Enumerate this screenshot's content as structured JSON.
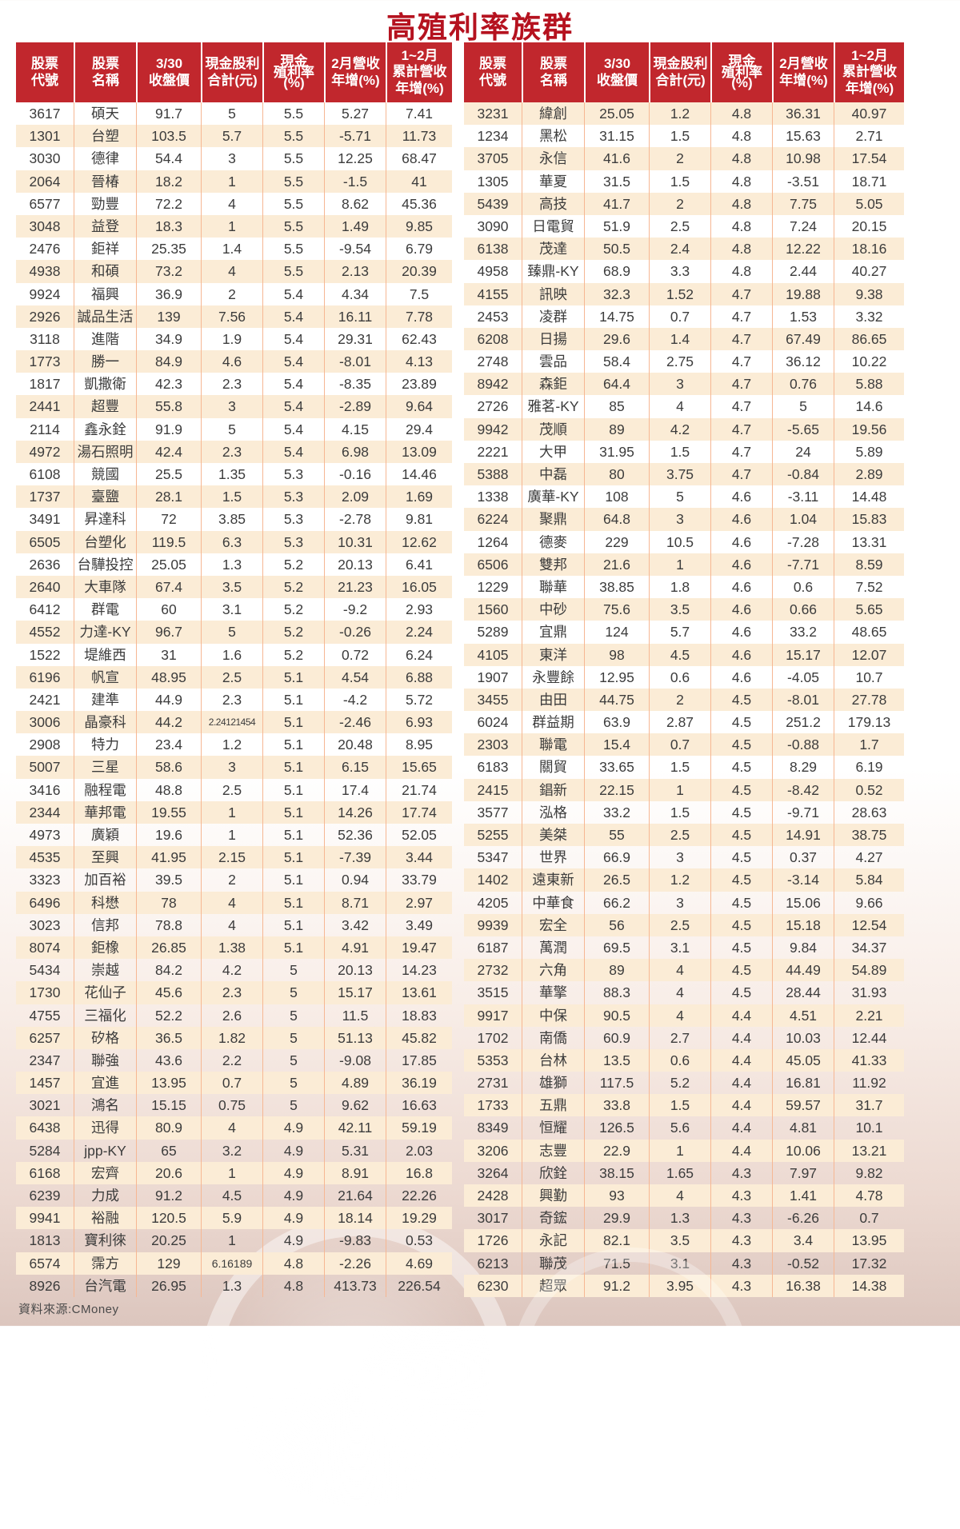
{
  "title": "高殖利率族群",
  "source": "資料來源:CMoney",
  "colors": {
    "header_bg": "#c1272d",
    "title_red": "#b5121f",
    "row_stripe": "#fbecd6",
    "column_divider": "#f6b793",
    "body_text": "#3c3c3c"
  },
  "table": {
    "headers": [
      {
        "label": "股票代號",
        "lines": [
          "股票",
          "代號"
        ]
      },
      {
        "label": "股票名稱",
        "lines": [
          "股票",
          "名稱"
        ]
      },
      {
        "label": "3/30收盤價",
        "lines": [
          "3/30",
          "收盤價"
        ]
      },
      {
        "label": "現金股利合計(元)",
        "lines": [
          "現金股利",
          "合計(元)"
        ]
      },
      {
        "label": "現金殖利率(%)",
        "lines": [
          "現金",
          "殖利率",
          "(%)"
        ]
      },
      {
        "label": "2月營收年增(%)",
        "lines": [
          "2月營收",
          "年增(%)"
        ]
      },
      {
        "label": "1~2月累計營收年增(%)",
        "lines": [
          "1~2月",
          "累計營收",
          "年增(%)"
        ]
      }
    ],
    "column_keys": [
      "code",
      "name",
      "price",
      "dividend",
      "yield",
      "feb-yoy",
      "cum-yoy"
    ]
  },
  "left_rows": [
    [
      "3617",
      "碩天",
      "91.7",
      "5",
      "5.5",
      "5.27",
      "7.41"
    ],
    [
      "1301",
      "台塑",
      "103.5",
      "5.7",
      "5.5",
      "-5.71",
      "11.73"
    ],
    [
      "3030",
      "德律",
      "54.4",
      "3",
      "5.5",
      "12.25",
      "68.47"
    ],
    [
      "2064",
      "晉椿",
      "18.2",
      "1",
      "5.5",
      "-1.5",
      "41"
    ],
    [
      "6577",
      "勁豐",
      "72.2",
      "4",
      "5.5",
      "8.62",
      "45.36"
    ],
    [
      "3048",
      "益登",
      "18.3",
      "1",
      "5.5",
      "1.49",
      "9.85"
    ],
    [
      "2476",
      "鉅祥",
      "25.35",
      "1.4",
      "5.5",
      "-9.54",
      "6.79"
    ],
    [
      "4938",
      "和碩",
      "73.2",
      "4",
      "5.5",
      "2.13",
      "20.39"
    ],
    [
      "9924",
      "福興",
      "36.9",
      "2",
      "5.4",
      "4.34",
      "7.5"
    ],
    [
      "2926",
      "誠品生活",
      "139",
      "7.56",
      "5.4",
      "16.11",
      "7.78"
    ],
    [
      "3118",
      "進階",
      "34.9",
      "1.9",
      "5.4",
      "29.31",
      "62.43"
    ],
    [
      "1773",
      "勝一",
      "84.9",
      "4.6",
      "5.4",
      "-8.01",
      "4.13"
    ],
    [
      "1817",
      "凱撒衛",
      "42.3",
      "2.3",
      "5.4",
      "-8.35",
      "23.89"
    ],
    [
      "2441",
      "超豐",
      "55.8",
      "3",
      "5.4",
      "-2.89",
      "9.64"
    ],
    [
      "2114",
      "鑫永銓",
      "91.9",
      "5",
      "5.4",
      "4.15",
      "29.4"
    ],
    [
      "4972",
      "湯石照明",
      "42.4",
      "2.3",
      "5.4",
      "6.98",
      "13.09"
    ],
    [
      "6108",
      "競國",
      "25.5",
      "1.35",
      "5.3",
      "-0.16",
      "14.46"
    ],
    [
      "1737",
      "臺鹽",
      "28.1",
      "1.5",
      "5.3",
      "2.09",
      "1.69"
    ],
    [
      "3491",
      "昇達科",
      "72",
      "3.85",
      "5.3",
      "-2.78",
      "9.81"
    ],
    [
      "6505",
      "台塑化",
      "119.5",
      "6.3",
      "5.3",
      "10.31",
      "12.62"
    ],
    [
      "2636",
      "台驊投控",
      "25.05",
      "1.3",
      "5.2",
      "20.13",
      "6.41"
    ],
    [
      "2640",
      "大車隊",
      "67.4",
      "3.5",
      "5.2",
      "21.23",
      "16.05"
    ],
    [
      "6412",
      "群電",
      "60",
      "3.1",
      "5.2",
      "-9.2",
      "2.93"
    ],
    [
      "4552",
      "力達-KY",
      "96.7",
      "5",
      "5.2",
      "-0.26",
      "2.24"
    ],
    [
      "1522",
      "堤維西",
      "31",
      "1.6",
      "5.2",
      "0.72",
      "6.24"
    ],
    [
      "6196",
      "帆宣",
      "48.95",
      "2.5",
      "5.1",
      "4.54",
      "6.88"
    ],
    [
      "2421",
      "建準",
      "44.9",
      "2.3",
      "5.1",
      "-4.2",
      "5.72"
    ],
    [
      "3006",
      "晶豪科",
      "44.2",
      "2.24121454",
      "5.1",
      "-2.46",
      "6.93"
    ],
    [
      "2908",
      "特力",
      "23.4",
      "1.2",
      "5.1",
      "20.48",
      "8.95"
    ],
    [
      "5007",
      "三星",
      "58.6",
      "3",
      "5.1",
      "6.15",
      "15.65"
    ],
    [
      "3416",
      "融程電",
      "48.8",
      "2.5",
      "5.1",
      "17.4",
      "21.74"
    ],
    [
      "2344",
      "華邦電",
      "19.55",
      "1",
      "5.1",
      "14.26",
      "17.74"
    ],
    [
      "4973",
      "廣穎",
      "19.6",
      "1",
      "5.1",
      "52.36",
      "52.05"
    ],
    [
      "4535",
      "至興",
      "41.95",
      "2.15",
      "5.1",
      "-7.39",
      "3.44"
    ],
    [
      "3323",
      "加百裕",
      "39.5",
      "2",
      "5.1",
      "0.94",
      "33.79"
    ],
    [
      "6496",
      "科懋",
      "78",
      "4",
      "5.1",
      "8.71",
      "2.97"
    ],
    [
      "3023",
      "信邦",
      "78.8",
      "4",
      "5.1",
      "3.42",
      "3.49"
    ],
    [
      "8074",
      "鉅橡",
      "26.85",
      "1.38",
      "5.1",
      "4.91",
      "19.47"
    ],
    [
      "5434",
      "崇越",
      "84.2",
      "4.2",
      "5",
      "20.13",
      "14.23"
    ],
    [
      "1730",
      "花仙子",
      "45.6",
      "2.3",
      "5",
      "15.17",
      "13.61"
    ],
    [
      "4755",
      "三福化",
      "52.2",
      "2.6",
      "5",
      "11.5",
      "18.83"
    ],
    [
      "6257",
      "矽格",
      "36.5",
      "1.82",
      "5",
      "51.13",
      "45.82"
    ],
    [
      "2347",
      "聯強",
      "43.6",
      "2.2",
      "5",
      "-9.08",
      "17.85"
    ],
    [
      "1457",
      "宜進",
      "13.95",
      "0.7",
      "5",
      "4.89",
      "36.19"
    ],
    [
      "3021",
      "鴻名",
      "15.15",
      "0.75",
      "5",
      "9.62",
      "16.63"
    ],
    [
      "6438",
      "迅得",
      "80.9",
      "4",
      "4.9",
      "42.11",
      "59.19"
    ],
    [
      "5284",
      "jpp-KY",
      "65",
      "3.2",
      "4.9",
      "5.31",
      "2.03"
    ],
    [
      "6168",
      "宏齊",
      "20.6",
      "1",
      "4.9",
      "8.91",
      "16.8"
    ],
    [
      "6239",
      "力成",
      "91.2",
      "4.5",
      "4.9",
      "21.64",
      "22.26"
    ],
    [
      "9941",
      "裕融",
      "120.5",
      "5.9",
      "4.9",
      "18.14",
      "19.29"
    ],
    [
      "1813",
      "寶利徠",
      "20.25",
      "1",
      "4.9",
      "-9.83",
      "0.53"
    ],
    [
      "6574",
      "霈方",
      "129",
      "6.16189",
      "4.8",
      "-2.26",
      "4.69"
    ],
    [
      "8926",
      "台汽電",
      "26.95",
      "1.3",
      "4.8",
      "413.73",
      "226.54"
    ]
  ],
  "right_rows": [
    [
      "3231",
      "緯創",
      "25.05",
      "1.2",
      "4.8",
      "36.31",
      "40.97"
    ],
    [
      "1234",
      "黑松",
      "31.15",
      "1.5",
      "4.8",
      "15.63",
      "2.71"
    ],
    [
      "3705",
      "永信",
      "41.6",
      "2",
      "4.8",
      "10.98",
      "17.54"
    ],
    [
      "1305",
      "華夏",
      "31.5",
      "1.5",
      "4.8",
      "-3.51",
      "18.71"
    ],
    [
      "5439",
      "高技",
      "41.7",
      "2",
      "4.8",
      "7.75",
      "5.05"
    ],
    [
      "3090",
      "日電貿",
      "51.9",
      "2.5",
      "4.8",
      "7.24",
      "20.15"
    ],
    [
      "6138",
      "茂達",
      "50.5",
      "2.4",
      "4.8",
      "12.22",
      "18.16"
    ],
    [
      "4958",
      "臻鼎-KY",
      "68.9",
      "3.3",
      "4.8",
      "2.44",
      "40.27"
    ],
    [
      "4155",
      "訊映",
      "32.3",
      "1.52",
      "4.7",
      "19.88",
      "9.38"
    ],
    [
      "2453",
      "凌群",
      "14.75",
      "0.7",
      "4.7",
      "1.53",
      "3.32"
    ],
    [
      "6208",
      "日揚",
      "29.6",
      "1.4",
      "4.7",
      "67.49",
      "86.65"
    ],
    [
      "2748",
      "雲品",
      "58.4",
      "2.75",
      "4.7",
      "36.12",
      "10.22"
    ],
    [
      "8942",
      "森鉅",
      "64.4",
      "3",
      "4.7",
      "0.76",
      "5.88"
    ],
    [
      "2726",
      "雅茗-KY",
      "85",
      "4",
      "4.7",
      "5",
      "14.6"
    ],
    [
      "9942",
      "茂順",
      "89",
      "4.2",
      "4.7",
      "-5.65",
      "19.56"
    ],
    [
      "2221",
      "大甲",
      "31.95",
      "1.5",
      "4.7",
      "24",
      "5.89"
    ],
    [
      "5388",
      "中磊",
      "80",
      "3.75",
      "4.7",
      "-0.84",
      "2.89"
    ],
    [
      "1338",
      "廣華-KY",
      "108",
      "5",
      "4.6",
      "-3.11",
      "14.48"
    ],
    [
      "6224",
      "聚鼎",
      "64.8",
      "3",
      "4.6",
      "1.04",
      "15.83"
    ],
    [
      "1264",
      "德麥",
      "229",
      "10.5",
      "4.6",
      "-7.28",
      "13.31"
    ],
    [
      "6506",
      "雙邦",
      "21.6",
      "1",
      "4.6",
      "-7.71",
      "8.59"
    ],
    [
      "1229",
      "聯華",
      "38.85",
      "1.8",
      "4.6",
      "0.6",
      "7.52"
    ],
    [
      "1560",
      "中砂",
      "75.6",
      "3.5",
      "4.6",
      "0.66",
      "5.65"
    ],
    [
      "5289",
      "宜鼎",
      "124",
      "5.7",
      "4.6",
      "33.2",
      "48.65"
    ],
    [
      "4105",
      "東洋",
      "98",
      "4.5",
      "4.6",
      "15.17",
      "12.07"
    ],
    [
      "1907",
      "永豐餘",
      "12.95",
      "0.6",
      "4.6",
      "-4.05",
      "10.7"
    ],
    [
      "3455",
      "由田",
      "44.75",
      "2",
      "4.5",
      "-8.01",
      "27.78"
    ],
    [
      "6024",
      "群益期",
      "63.9",
      "2.87",
      "4.5",
      "251.2",
      "179.13"
    ],
    [
      "2303",
      "聯電",
      "15.4",
      "0.7",
      "4.5",
      "-0.88",
      "1.7"
    ],
    [
      "6183",
      "關貿",
      "33.65",
      "1.5",
      "4.5",
      "8.29",
      "6.19"
    ],
    [
      "2415",
      "錩新",
      "22.15",
      "1",
      "4.5",
      "-8.42",
      "0.52"
    ],
    [
      "3577",
      "泓格",
      "33.2",
      "1.5",
      "4.5",
      "-9.71",
      "28.63"
    ],
    [
      "5255",
      "美桀",
      "55",
      "2.5",
      "4.5",
      "14.91",
      "38.75"
    ],
    [
      "5347",
      "世界",
      "66.9",
      "3",
      "4.5",
      "0.37",
      "4.27"
    ],
    [
      "1402",
      "遠東新",
      "26.5",
      "1.2",
      "4.5",
      "-3.14",
      "5.84"
    ],
    [
      "4205",
      "中華食",
      "66.2",
      "3",
      "4.5",
      "15.06",
      "9.66"
    ],
    [
      "9939",
      "宏全",
      "56",
      "2.5",
      "4.5",
      "15.18",
      "12.54"
    ],
    [
      "6187",
      "萬潤",
      "69.5",
      "3.1",
      "4.5",
      "9.84",
      "34.37"
    ],
    [
      "2732",
      "六角",
      "89",
      "4",
      "4.5",
      "44.49",
      "54.89"
    ],
    [
      "3515",
      "華擎",
      "88.3",
      "4",
      "4.5",
      "28.44",
      "31.93"
    ],
    [
      "9917",
      "中保",
      "90.5",
      "4",
      "4.4",
      "4.51",
      "2.21"
    ],
    [
      "1702",
      "南僑",
      "60.9",
      "2.7",
      "4.4",
      "10.03",
      "12.44"
    ],
    [
      "5353",
      "台林",
      "13.5",
      "0.6",
      "4.4",
      "45.05",
      "41.33"
    ],
    [
      "2731",
      "雄獅",
      "117.5",
      "5.2",
      "4.4",
      "16.81",
      "11.92"
    ],
    [
      "1733",
      "五鼎",
      "33.8",
      "1.5",
      "4.4",
      "59.57",
      "31.7"
    ],
    [
      "8349",
      "恒耀",
      "126.5",
      "5.6",
      "4.4",
      "4.81",
      "10.1"
    ],
    [
      "3206",
      "志豐",
      "22.9",
      "1",
      "4.4",
      "10.06",
      "13.21"
    ],
    [
      "3264",
      "欣銓",
      "38.15",
      "1.65",
      "4.3",
      "7.97",
      "9.82"
    ],
    [
      "2428",
      "興勤",
      "93",
      "4",
      "4.3",
      "1.41",
      "4.78"
    ],
    [
      "3017",
      "奇鋐",
      "29.9",
      "1.3",
      "4.3",
      "-6.26",
      "0.7"
    ],
    [
      "1726",
      "永記",
      "82.1",
      "3.5",
      "4.3",
      "3.4",
      "13.95"
    ],
    [
      "6213",
      "聯茂",
      "71.5",
      "3.1",
      "4.3",
      "-0.52",
      "17.32"
    ],
    [
      "6230",
      "超眾",
      "91.2",
      "3.95",
      "4.3",
      "16.38",
      "14.38"
    ]
  ]
}
